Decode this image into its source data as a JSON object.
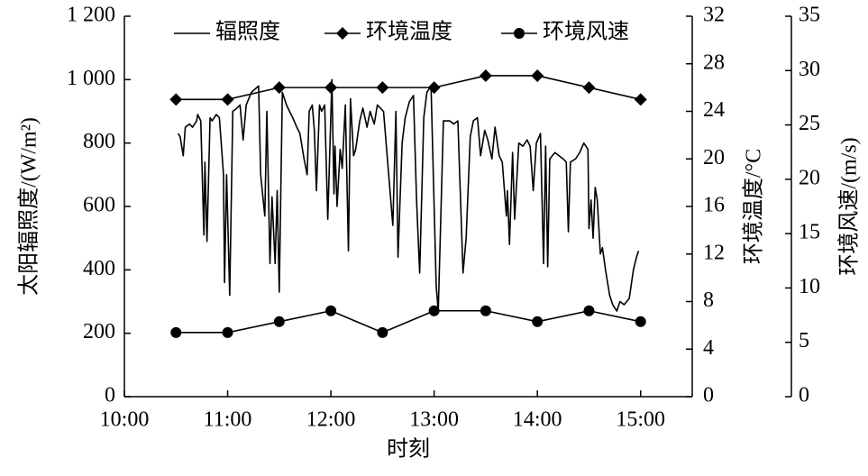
{
  "chart_data": {
    "type": "line",
    "xlabel": "时刻",
    "ylabel": "太阳辐照度/(W/m²)",
    "y2label": "环境温度/°C",
    "y3label": "环境风速/(m/s)",
    "xlim": [
      10,
      15.5
    ],
    "xticks": [
      {
        "value": 10,
        "label": "10:00"
      },
      {
        "value": 11,
        "label": "11:00"
      },
      {
        "value": 12,
        "label": "12:00"
      },
      {
        "value": 13,
        "label": "13:00"
      },
      {
        "value": 14,
        "label": "14:00"
      },
      {
        "value": 15,
        "label": "15:00"
      }
    ],
    "ylim": [
      0,
      1200
    ],
    "yticks": [
      0,
      200,
      400,
      600,
      800,
      {
        "value": 1000,
        "label": "1 000"
      },
      {
        "value": 1200,
        "label": "1 200"
      }
    ],
    "y2lim": [
      0,
      32
    ],
    "y2ticks": [
      0,
      4,
      8,
      12,
      16,
      20,
      24,
      28,
      32
    ],
    "y3lim": [
      0,
      35
    ],
    "y3ticks": [
      0,
      5,
      10,
      15,
      20,
      25,
      30,
      35
    ],
    "legend": "top",
    "series": [
      {
        "name": "辐照度",
        "color": "#000000",
        "marker": "none",
        "x": [
          10.52,
          10.54,
          10.57,
          10.59,
          10.63,
          10.66,
          10.7,
          10.71,
          10.74,
          10.77,
          10.78,
          10.8,
          10.83,
          10.85,
          10.89,
          10.92,
          10.96,
          10.97,
          10.99,
          11.02,
          11.05,
          11.09,
          11.12,
          11.15,
          11.18,
          11.23,
          11.3,
          11.32,
          11.36,
          11.38,
          11.41,
          11.43,
          11.46,
          11.48,
          11.5,
          11.53,
          11.57,
          11.6,
          11.63,
          11.67,
          11.7,
          11.74,
          11.77,
          11.79,
          11.82,
          11.84,
          11.86,
          11.89,
          11.91,
          11.94,
          11.97,
          12.01,
          12.03,
          12.04,
          12.06,
          12.09,
          12.11,
          12.14,
          12.17,
          12.19,
          12.22,
          12.24,
          12.28,
          12.31,
          12.35,
          12.38,
          12.42,
          12.45,
          12.51,
          12.56,
          12.6,
          12.63,
          12.65,
          12.69,
          12.72,
          12.76,
          12.8,
          12.83,
          12.86,
          12.9,
          12.93,
          12.97,
          13.02,
          13.04,
          13.09,
          13.15,
          13.19,
          13.23,
          13.28,
          13.31,
          13.35,
          13.38,
          13.42,
          13.45,
          13.49,
          13.52,
          13.56,
          13.59,
          13.63,
          13.66,
          13.7,
          13.71,
          13.73,
          13.76,
          13.78,
          13.82,
          13.86,
          13.9,
          13.93,
          13.96,
          13.99,
          14.03,
          14.06,
          14.08,
          14.1,
          14.12,
          14.17,
          14.21,
          14.25,
          14.28,
          14.3,
          14.32,
          14.37,
          14.41,
          14.45,
          14.49,
          14.5,
          14.52,
          14.54,
          14.56,
          14.58,
          14.61,
          14.63,
          14.66,
          14.7,
          14.73,
          14.77,
          14.8,
          14.84,
          14.89,
          14.93,
          14.96,
          14.98
        ],
        "values": [
          830,
          820,
          760,
          850,
          860,
          850,
          870,
          890,
          870,
          510,
          740,
          490,
          880,
          870,
          890,
          880,
          700,
          360,
          700,
          320,
          900,
          910,
          920,
          810,
          920,
          960,
          980,
          700,
          570,
          900,
          420,
          630,
          420,
          650,
          330,
          960,
          920,
          900,
          880,
          850,
          830,
          750,
          700,
          900,
          920,
          840,
          650,
          920,
          900,
          920,
          560,
          1000,
          640,
          790,
          600,
          780,
          720,
          920,
          460,
          940,
          760,
          780,
          870,
          910,
          850,
          900,
          860,
          920,
          900,
          700,
          540,
          900,
          440,
          800,
          880,
          930,
          950,
          620,
          390,
          880,
          960,
          980,
          350,
          270,
          870,
          870,
          860,
          870,
          390,
          500,
          820,
          870,
          880,
          760,
          840,
          810,
          750,
          850,
          760,
          740,
          570,
          650,
          480,
          770,
          560,
          800,
          790,
          810,
          790,
          650,
          800,
          830,
          420,
          790,
          410,
          750,
          770,
          760,
          750,
          740,
          520,
          740,
          750,
          770,
          800,
          780,
          530,
          620,
          500,
          660,
          620,
          450,
          470,
          400,
          320,
          290,
          270,
          300,
          290,
          310,
          400,
          440,
          460
        ]
      },
      {
        "name": "环境温度",
        "color": "#000000",
        "marker": "diamond",
        "axis": "y2",
        "x": [
          10.5,
          11,
          11.5,
          12,
          12.5,
          13,
          13.5,
          14,
          14.5,
          15
        ],
        "values": [
          25,
          25,
          26,
          26,
          26,
          26,
          27,
          27,
          26,
          25
        ]
      },
      {
        "name": "环境风速",
        "color": "#000000",
        "marker": "circle",
        "axis": "y3",
        "x": [
          10.5,
          11,
          11.5,
          12,
          12.5,
          13,
          13.5,
          14,
          14.5,
          15
        ],
        "values": [
          5.9,
          5.9,
          6.9,
          7.9,
          5.9,
          7.9,
          7.9,
          6.9,
          7.9,
          6.9
        ]
      }
    ]
  }
}
